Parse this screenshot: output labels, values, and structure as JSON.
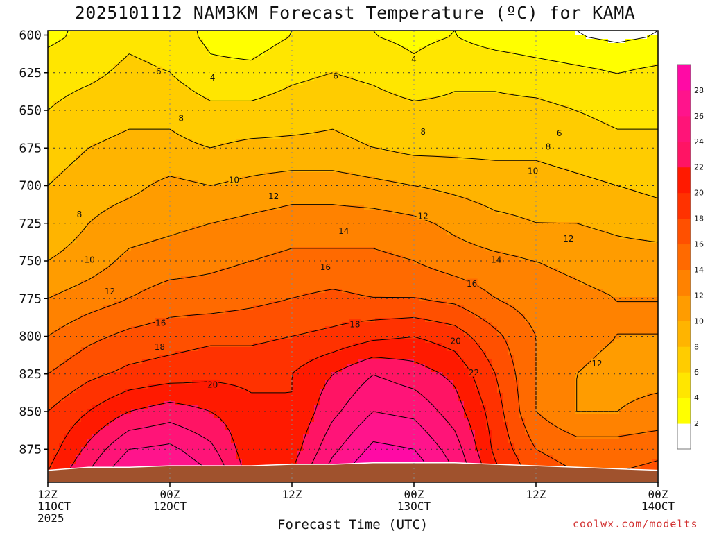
{
  "title": "2025101112 NAM3KM Forecast Temperature (ºC) for KAMA",
  "credit": "coolwx.com/modelts",
  "chart_data": {
    "type": "heatmap",
    "title": "2025101112 NAM3KM Forecast Temperature (ºC) for KAMA",
    "xlabel": "Forecast Time (UTC)",
    "ylabel": "",
    "y_axis": "pressure (inverted)",
    "y_ticks": [
      600,
      625,
      650,
      675,
      700,
      725,
      750,
      775,
      800,
      825,
      850,
      875
    ],
    "ylim": [
      597,
      897
    ],
    "x_hours_range": [
      0,
      60
    ],
    "x_ticks": [
      {
        "hour": 0,
        "line1": "12Z",
        "line2": "11OCT",
        "line3": "2025"
      },
      {
        "hour": 12,
        "line1": "00Z",
        "line2": "12OCT",
        "line3": ""
      },
      {
        "hour": 24,
        "line1": "12Z",
        "line2": "",
        "line3": ""
      },
      {
        "hour": 36,
        "line1": "00Z",
        "line2": "13OCT",
        "line3": ""
      },
      {
        "hour": 48,
        "line1": "12Z",
        "line2": "",
        "line3": ""
      },
      {
        "hour": 60,
        "line1": "00Z",
        "line2": "14OCT",
        "line3": ""
      }
    ],
    "grid": true,
    "colorbar": {
      "placement": "right",
      "levels": [
        0,
        2,
        4,
        6,
        8,
        10,
        12,
        14,
        16,
        18,
        20,
        22,
        24,
        26,
        28,
        30
      ],
      "labels": [
        "2",
        "4",
        "6",
        "8",
        "10",
        "12",
        "14",
        "16",
        "18",
        "20",
        "22",
        "24",
        "26",
        "28"
      ],
      "colors": [
        "#ffffff",
        "#ffff00",
        "#ffe600",
        "#ffcc00",
        "#ffb400",
        "#ff9c00",
        "#ff8200",
        "#ff6a00",
        "#ff5000",
        "#ff3200",
        "#ff1a00",
        "#ff1464",
        "#ff1478",
        "#ff148c",
        "#ff0aa5"
      ]
    },
    "surface_color": "#a0522d",
    "surface_pressure": [
      889,
      887,
      887,
      886,
      886,
      886,
      885,
      885,
      884,
      884,
      884,
      885,
      886,
      887,
      888,
      889
    ],
    "temperature_grid": {
      "hours": [
        0,
        4,
        8,
        12,
        16,
        20,
        24,
        28,
        32,
        36,
        40,
        44,
        48,
        52,
        56,
        60
      ],
      "pressures": [
        600,
        625,
        650,
        675,
        700,
        725,
        750,
        775,
        800,
        825,
        850,
        875,
        890
      ],
      "values": [
        [
          3.5,
          4.5,
          5.5,
          5,
          3.5,
          3,
          4,
          4.5,
          4,
          3.5,
          4,
          3,
          2.5,
          2,
          1.5,
          2
        ],
        [
          5,
          5.5,
          6.5,
          6,
          4.5,
          4.5,
          5.5,
          6,
          5.5,
          4.5,
          5.5,
          5.5,
          5,
          4.5,
          4,
          4.5
        ],
        [
          6,
          7,
          7.5,
          7.5,
          6.5,
          6.5,
          7,
          7.5,
          7,
          6.5,
          6.5,
          6.5,
          6.5,
          6,
          5.5,
          5.5
        ],
        [
          7,
          8,
          8.5,
          8.5,
          8,
          8.5,
          8.5,
          8.5,
          8,
          7.5,
          7.5,
          7.5,
          7.5,
          7,
          6.5,
          6.5
        ],
        [
          8,
          9,
          9.5,
          10.5,
          10,
          10.5,
          11,
          11,
          10.5,
          10,
          9.5,
          9,
          9,
          8.5,
          8,
          7.5
        ],
        [
          8.5,
          10,
          11,
          11.5,
          12,
          12.5,
          13,
          13,
          13,
          12.5,
          11.5,
          10.5,
          10,
          10,
          9.5,
          9
        ],
        [
          10,
          11,
          12.5,
          13,
          13.5,
          14,
          14.5,
          14.5,
          14.5,
          14,
          13,
          12.5,
          12,
          11.5,
          11,
          11
        ],
        [
          12,
          13,
          14,
          15,
          15,
          15.5,
          16,
          16.5,
          16,
          16,
          15.5,
          14,
          13,
          12.5,
          12,
          12
        ],
        [
          14,
          15.5,
          16.5,
          17,
          17.5,
          17.5,
          18,
          18.5,
          19.5,
          20,
          19,
          16.5,
          14,
          12.5,
          12,
          12
        ],
        [
          16,
          17.5,
          18.5,
          19,
          19.5,
          19.5,
          20,
          22,
          24,
          23,
          21.5,
          18,
          14,
          12,
          11.5,
          11.5
        ],
        [
          18,
          20,
          22,
          23,
          22,
          20.5,
          20,
          23.5,
          26,
          25.5,
          23,
          19,
          14,
          12,
          12,
          12.5
        ],
        [
          19,
          22.5,
          26,
          26.5,
          24.5,
          20.5,
          21,
          25.5,
          28.5,
          28,
          25,
          19.5,
          16,
          15,
          15,
          15.5
        ],
        [
          20,
          24,
          28,
          28,
          26,
          21,
          22,
          27,
          30,
          29.5,
          26,
          20.5,
          17,
          16,
          16,
          16.5
        ]
      ]
    },
    "contour_labels": [
      {
        "text": "6",
        "hour": 10.9,
        "pressure": 624
      },
      {
        "text": "4",
        "hour": 16.2,
        "pressure": 628
      },
      {
        "text": "4",
        "hour": 36,
        "pressure": 616
      },
      {
        "text": "6",
        "hour": 28.3,
        "pressure": 627
      },
      {
        "text": "8",
        "hour": 13.1,
        "pressure": 655
      },
      {
        "text": "8",
        "hour": 36.9,
        "pressure": 664
      },
      {
        "text": "6",
        "hour": 50.3,
        "pressure": 665
      },
      {
        "text": "8",
        "hour": 49.2,
        "pressure": 674
      },
      {
        "text": "10",
        "hour": 18.3,
        "pressure": 696
      },
      {
        "text": "10",
        "hour": 47.7,
        "pressure": 690
      },
      {
        "text": "8",
        "hour": 3.1,
        "pressure": 719
      },
      {
        "text": "12",
        "hour": 22.2,
        "pressure": 707
      },
      {
        "text": "12",
        "hour": 36.9,
        "pressure": 720
      },
      {
        "text": "14",
        "hour": 29.1,
        "pressure": 730
      },
      {
        "text": "12",
        "hour": 51.2,
        "pressure": 735
      },
      {
        "text": "10",
        "hour": 4.1,
        "pressure": 749
      },
      {
        "text": "14",
        "hour": 44.1,
        "pressure": 749
      },
      {
        "text": "16",
        "hour": 27.3,
        "pressure": 754
      },
      {
        "text": "12",
        "hour": 6.1,
        "pressure": 770
      },
      {
        "text": "16",
        "hour": 41.7,
        "pressure": 765
      },
      {
        "text": "16",
        "hour": 11.1,
        "pressure": 791
      },
      {
        "text": "18",
        "hour": 30.2,
        "pressure": 792
      },
      {
        "text": "20",
        "hour": 40.1,
        "pressure": 803
      },
      {
        "text": "18",
        "hour": 11.0,
        "pressure": 807
      },
      {
        "text": "12",
        "hour": 54.0,
        "pressure": 818
      },
      {
        "text": "22",
        "hour": 41.9,
        "pressure": 824
      },
      {
        "text": "20",
        "hour": 16.2,
        "pressure": 832
      }
    ]
  }
}
